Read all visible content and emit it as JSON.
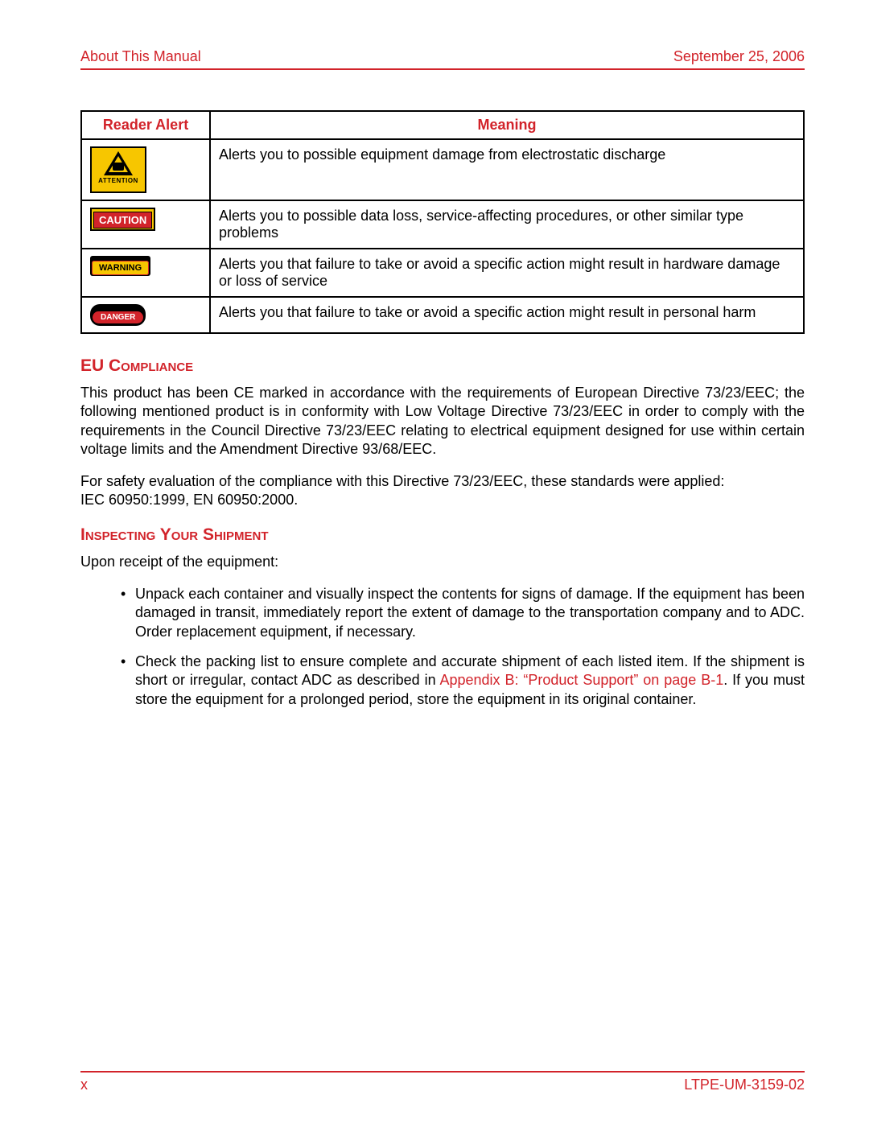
{
  "header": {
    "left": "About This Manual",
    "right": "September 25, 2006"
  },
  "table": {
    "columns": [
      "Reader Alert",
      "Meaning"
    ],
    "rows": [
      {
        "icon": "attention",
        "attn_label": "ATTENTION",
        "meaning": "Alerts you to possible equipment damage from electrostatic discharge"
      },
      {
        "icon": "caution",
        "label": "CAUTION",
        "meaning": "Alerts you to possible data loss, service-affecting procedures, or other similar type problems"
      },
      {
        "icon": "warning",
        "label": "WARNING",
        "meaning": "Alerts you that failure to take or avoid a specific action might result in hardware damage or loss of service"
      },
      {
        "icon": "danger",
        "label": "DANGER",
        "meaning": "Alerts you that failure to take or avoid a specific action might result in personal harm"
      }
    ]
  },
  "sections": {
    "eu": {
      "title": "EU Compliance",
      "p1": "This product has been CE marked in accordance with the requirements of European Directive 73/23/EEC; the following mentioned product is in conformity with Low Voltage Directive 73/23/EEC in order to comply with the requirements in the Council Directive 73/23/EEC relating to electrical equipment designed for use within certain voltage limits and the Amendment Directive 93/68/EEC.",
      "p2a": "For safety evaluation of the compliance with this Directive 73/23/EEC, these standards were applied:",
      "p2b": "IEC 60950:1999, EN 60950:2000."
    },
    "ship": {
      "title": "Inspecting Your Shipment",
      "intro": "Upon receipt of the equipment:",
      "b1": "Unpack each container and visually inspect the contents for signs of damage. If the equipment has been damaged in transit, immediately report the extent of damage to the transportation company and to ADC. Order replacement equipment, if necessary.",
      "b2a": "Check the packing list to ensure complete and accurate shipment of each listed item. If the shipment is short or irregular, contact ADC as described in ",
      "b2link": "Appendix B: “Product Support” on page B-1",
      "b2b": ". If you must store the equipment for a prolonged period, store the equipment in its original container."
    }
  },
  "footer": {
    "left": "x",
    "right": "LTPE-UM-3159-02"
  },
  "colors": {
    "brand_red": "#d2232a",
    "caution_yellow": "#f7c600",
    "black": "#000000",
    "white": "#ffffff"
  }
}
